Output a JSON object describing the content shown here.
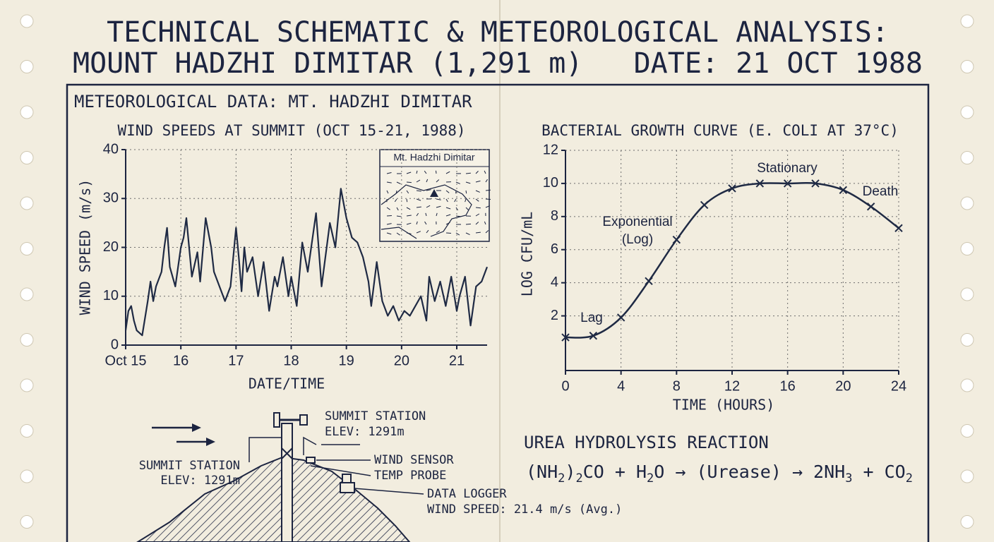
{
  "header": {
    "title": "TECHNICAL SCHEMATIC & METEOROLOGICAL ANALYSIS:",
    "subject": "MOUNT HADZHI DIMITAR (1,291 m)",
    "date": "DATE: 21 OCT 1988"
  },
  "section_title": "METEOROLOGICAL DATA: MT. HADZHI DIMITAR",
  "chart_data": [
    {
      "type": "line",
      "title": "WIND SPEEDS AT SUMMIT (OCT 15-21, 1988)",
      "x_label": "DATE/TIME",
      "y_label": "WIND SPEED (m/s)",
      "inset_label": "Mt. Hadzhi Dimitar",
      "x": [
        15.0,
        15.05,
        15.1,
        15.15,
        15.2,
        15.3,
        15.4,
        15.45,
        15.5,
        15.55,
        15.65,
        15.7,
        15.75,
        15.8,
        15.9,
        16.0,
        16.05,
        16.1,
        16.15,
        16.2,
        16.3,
        16.35,
        16.45,
        16.55,
        16.6,
        16.7,
        16.8,
        16.9,
        17.0,
        17.05,
        17.1,
        17.15,
        17.2,
        17.3,
        17.4,
        17.5,
        17.6,
        17.7,
        17.75,
        17.85,
        17.95,
        18.0,
        18.1,
        18.2,
        18.3,
        18.45,
        18.55,
        18.7,
        18.8,
        18.9,
        19.0,
        19.1,
        19.2,
        19.3,
        19.4,
        19.45,
        19.55,
        19.65,
        19.75,
        19.85,
        19.95,
        20.05,
        20.15,
        20.25,
        20.35,
        20.45,
        20.5,
        20.6,
        20.7,
        20.8,
        20.9,
        21.0,
        21.05,
        21.15,
        21.25,
        21.35,
        21.45,
        21.55
      ],
      "series": [
        {
          "name": "Wind speed",
          "color": "#1f2a44",
          "values": [
            3,
            7,
            8,
            5,
            3,
            2,
            9,
            13,
            9,
            12,
            15,
            20,
            24,
            16,
            12,
            20,
            22,
            26,
            20,
            14,
            19,
            13,
            26,
            20,
            15,
            12,
            9,
            12,
            24,
            18,
            11,
            20,
            15,
            18,
            10,
            17,
            7,
            14,
            12,
            18,
            10,
            14,
            8,
            21,
            15,
            27,
            12,
            25,
            20,
            32,
            26,
            22,
            21,
            18,
            13,
            8,
            17,
            9,
            6,
            8,
            5,
            7,
            6,
            8,
            10,
            5,
            14,
            9,
            13,
            8,
            14,
            7,
            10,
            14,
            4,
            12,
            13,
            16
          ]
        }
      ],
      "xlim": [
        15,
        21.55
      ],
      "xticks": [
        {
          "value": 15,
          "label": "Oct 15"
        },
        16,
        17,
        18,
        19,
        20,
        21
      ],
      "ylim": [
        0,
        40
      ],
      "yticks": [
        0,
        10,
        20,
        30,
        40
      ],
      "grid": true
    },
    {
      "type": "line",
      "title": "BACTERIAL GROWTH CURVE (E. COLI AT 37°C)",
      "x_label": "TIME (HOURS)",
      "y_label": "LOG CFU/mL",
      "marker": "x",
      "smooth": true,
      "x": [
        0,
        2,
        4,
        6,
        8,
        10,
        12,
        14,
        16,
        18,
        20,
        22,
        24
      ],
      "series": [
        {
          "name": "E. coli",
          "color": "#1f2a44",
          "values": [
            0.7,
            0.8,
            1.9,
            4.1,
            6.6,
            8.7,
            9.7,
            10,
            10,
            10,
            9.6,
            8.6,
            7.3
          ]
        }
      ],
      "annotations": [
        "Lag",
        "Exponential",
        "(Log)",
        "Stationary",
        "Death"
      ],
      "xlim": [
        0,
        24
      ],
      "xticks": [
        0,
        4,
        8,
        12,
        16,
        20,
        24
      ],
      "ylim": [
        -1.3,
        12
      ],
      "yticks": [
        2,
        4,
        6,
        8,
        10,
        12
      ],
      "grid": true
    }
  ],
  "diagram": {
    "station_top": [
      "SUMMIT STATION",
      "ELEV: 1291m"
    ],
    "station_left": [
      "SUMMIT STATION",
      "ELEV: 1291m"
    ],
    "wind_sensor": "WIND SENSOR",
    "temp_probe": "TEMP PROBE",
    "data_logger": "DATA LOGGER",
    "wind_speed": "WIND SPEED: 21.4 m/s (Avg.)"
  },
  "reaction": {
    "title": "UREA HYDROLYSIS REACTION",
    "formula": [
      {
        "text": "(NH"
      },
      {
        "sub": "2"
      },
      {
        "text": ")"
      },
      {
        "sub": "2"
      },
      {
        "text": "CO + H"
      },
      {
        "sub": "2"
      },
      {
        "text": "O → (Urease) → 2NH"
      },
      {
        "sub": "3"
      },
      {
        "text": " + CO"
      },
      {
        "sub": "2"
      }
    ]
  }
}
